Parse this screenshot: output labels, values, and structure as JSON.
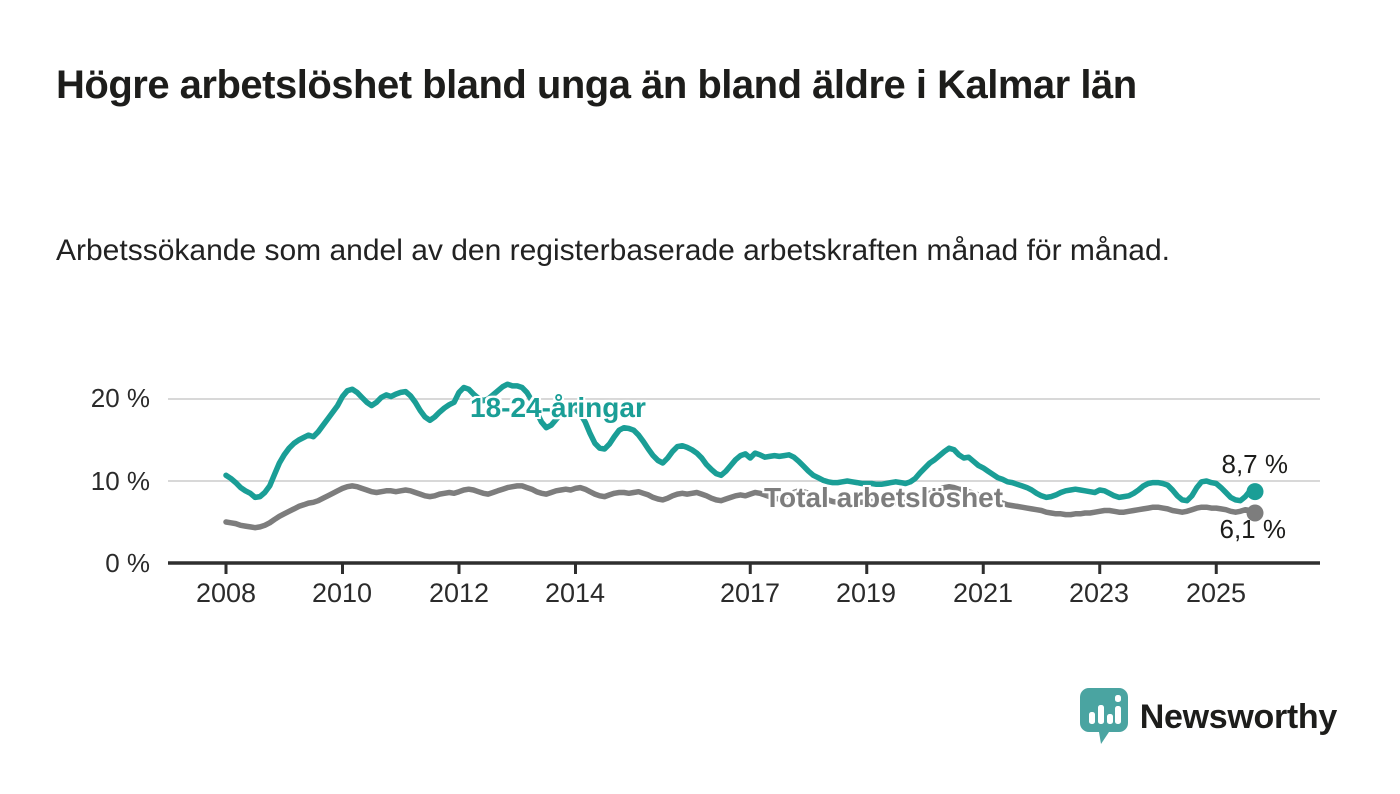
{
  "title": "Högre arbetslöshet bland unga än bland äldre i Kalmar län",
  "subtitle": "Arbetssökande som andel av den registerbaserade arbetskraften månad för månad.",
  "chart_data": {
    "type": "line",
    "unit": "%",
    "x_start": "2008-01",
    "x_end": "2025-09",
    "x_tick_labels": [
      "2008",
      "2010",
      "2012",
      "2014",
      "2017",
      "2019",
      "2021",
      "2023",
      "2025"
    ],
    "y_tick_labels": [
      "0 %",
      "10 %",
      "20 %"
    ],
    "y_tick_values": [
      0,
      10,
      20
    ],
    "ylim": [
      0,
      24
    ],
    "grid": "horizontal",
    "legend_position": "inline-labels",
    "series": [
      {
        "name": "18-24-åringar",
        "color": "#1a9e96",
        "end_value": 8.7,
        "end_label": "8,7 %",
        "values": [
          10.7,
          10.3,
          9.8,
          9.2,
          8.8,
          8.5,
          8.0,
          8.1,
          8.6,
          9.4,
          10.8,
          12.2,
          13.2,
          14.0,
          14.6,
          15.0,
          15.3,
          15.6,
          15.4,
          16.0,
          16.8,
          17.6,
          18.4,
          19.2,
          20.3,
          21.0,
          21.2,
          20.8,
          20.2,
          19.6,
          19.2,
          19.6,
          20.2,
          20.5,
          20.3,
          20.6,
          20.8,
          20.9,
          20.4,
          19.6,
          18.6,
          17.8,
          17.4,
          17.8,
          18.4,
          18.9,
          19.3,
          19.6,
          20.8,
          21.4,
          21.2,
          20.6,
          20.1,
          19.8,
          20.0,
          20.5,
          21.0,
          21.5,
          21.8,
          21.6,
          21.6,
          21.4,
          20.8,
          19.8,
          18.4,
          17.2,
          16.5,
          16.8,
          17.5,
          18.2,
          18.8,
          19.0,
          18.8,
          18.2,
          17.2,
          15.8,
          14.6,
          14.0,
          13.9,
          14.5,
          15.4,
          16.2,
          16.5,
          16.4,
          16.2,
          15.6,
          14.8,
          13.9,
          13.1,
          12.5,
          12.2,
          12.8,
          13.6,
          14.2,
          14.3,
          14.1,
          13.8,
          13.4,
          12.8,
          12.0,
          11.4,
          10.9,
          10.7,
          11.2,
          11.9,
          12.6,
          13.1,
          13.3,
          12.8,
          13.4,
          13.2,
          12.9,
          13.0,
          13.1,
          13.0,
          13.1,
          13.2,
          12.9,
          12.4,
          11.8,
          11.2,
          10.7,
          10.4,
          10.1,
          9.9,
          9.8,
          9.8,
          9.9,
          10.0,
          9.9,
          9.8,
          9.7,
          9.7,
          9.7,
          9.6,
          9.6,
          9.7,
          9.8,
          9.9,
          9.8,
          9.7,
          9.9,
          10.3,
          11.0,
          11.6,
          12.2,
          12.6,
          13.1,
          13.6,
          14.0,
          13.8,
          13.2,
          12.8,
          12.9,
          12.4,
          11.9,
          11.6,
          11.2,
          10.8,
          10.4,
          10.2,
          9.9,
          9.8,
          9.6,
          9.4,
          9.2,
          8.9,
          8.5,
          8.2,
          8.0,
          8.1,
          8.3,
          8.6,
          8.8,
          8.9,
          9.0,
          8.9,
          8.8,
          8.7,
          8.6,
          8.9,
          8.8,
          8.5,
          8.2,
          8.0,
          8.1,
          8.2,
          8.5,
          8.9,
          9.4,
          9.7,
          9.8,
          9.8,
          9.7,
          9.5,
          8.9,
          8.2,
          7.7,
          7.6,
          8.2,
          9.2,
          9.9,
          10.0,
          9.8,
          9.7,
          9.2,
          8.6,
          8.0,
          7.7,
          7.6,
          8.1,
          8.8,
          8.7
        ]
      },
      {
        "name": "Total arbetslöshet",
        "color": "#7d7d7d",
        "end_value": 6.1,
        "end_label": "6,1 %",
        "values": [
          5.0,
          4.9,
          4.8,
          4.6,
          4.5,
          4.4,
          4.3,
          4.4,
          4.6,
          4.9,
          5.3,
          5.7,
          6.0,
          6.3,
          6.6,
          6.9,
          7.1,
          7.3,
          7.4,
          7.6,
          7.9,
          8.2,
          8.5,
          8.8,
          9.1,
          9.3,
          9.4,
          9.3,
          9.1,
          8.9,
          8.7,
          8.6,
          8.7,
          8.8,
          8.8,
          8.7,
          8.8,
          8.9,
          8.8,
          8.6,
          8.4,
          8.2,
          8.1,
          8.2,
          8.4,
          8.5,
          8.6,
          8.5,
          8.7,
          8.9,
          9.0,
          8.9,
          8.7,
          8.5,
          8.4,
          8.6,
          8.8,
          9.0,
          9.2,
          9.3,
          9.4,
          9.4,
          9.2,
          9.0,
          8.7,
          8.5,
          8.4,
          8.6,
          8.8,
          8.9,
          9.0,
          8.9,
          9.1,
          9.2,
          9.0,
          8.7,
          8.4,
          8.2,
          8.1,
          8.3,
          8.5,
          8.6,
          8.6,
          8.5,
          8.6,
          8.7,
          8.5,
          8.3,
          8.0,
          7.8,
          7.7,
          7.9,
          8.2,
          8.4,
          8.5,
          8.4,
          8.5,
          8.6,
          8.4,
          8.2,
          7.9,
          7.7,
          7.6,
          7.8,
          8.0,
          8.2,
          8.3,
          8.2,
          8.4,
          8.6,
          8.5,
          8.3,
          8.1,
          7.9,
          7.8,
          8.0,
          8.3,
          8.6,
          8.8,
          8.7,
          8.5,
          8.3,
          8.1,
          7.9,
          7.7,
          7.5,
          7.4,
          7.5,
          7.6,
          7.6,
          7.5,
          7.4,
          7.4,
          7.5,
          7.4,
          7.3,
          7.2,
          7.2,
          7.3,
          7.3,
          7.4,
          7.5,
          7.7,
          8.0,
          8.3,
          8.5,
          8.7,
          9.0,
          9.2,
          9.3,
          9.2,
          9.0,
          8.9,
          8.7,
          8.5,
          8.3,
          8.1,
          7.9,
          7.7,
          7.5,
          7.3,
          7.1,
          7.0,
          6.9,
          6.8,
          6.7,
          6.6,
          6.5,
          6.4,
          6.2,
          6.1,
          6.0,
          6.0,
          5.9,
          5.9,
          6.0,
          6.0,
          6.1,
          6.1,
          6.2,
          6.3,
          6.4,
          6.4,
          6.3,
          6.2,
          6.2,
          6.3,
          6.4,
          6.5,
          6.6,
          6.7,
          6.8,
          6.8,
          6.7,
          6.6,
          6.4,
          6.3,
          6.2,
          6.3,
          6.5,
          6.7,
          6.8,
          6.8,
          6.7,
          6.7,
          6.6,
          6.5,
          6.3,
          6.2,
          6.3,
          6.5,
          6.4,
          6.1
        ]
      }
    ],
    "colors": {
      "grid": "#d8d8d8",
      "axis": "#2e2e2e",
      "text": "#2b2b2b"
    }
  },
  "branding": {
    "logo_icon": "speech-bubble-bar-chart-icon",
    "logo_text": "Newsworthy",
    "logo_color": "#46a09d"
  }
}
